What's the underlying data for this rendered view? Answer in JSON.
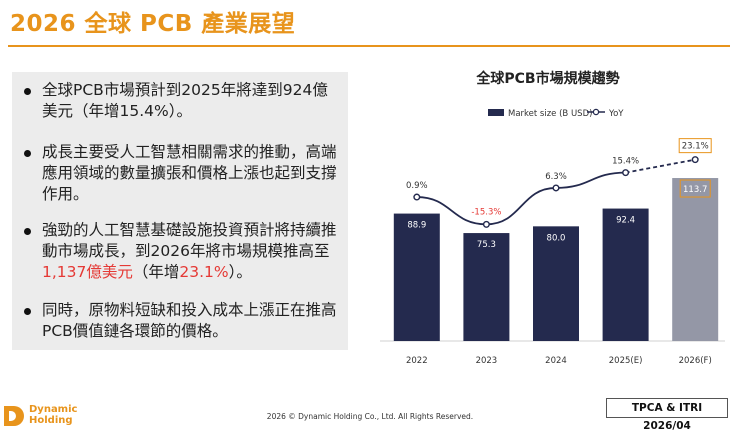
{
  "page": {
    "title": "2026 全球 PCB 產業展望",
    "footer": "2026 © Dynamic Holding Co., Ltd. All Rights Reserved.",
    "source": "TPCA & ITRI 2026/04",
    "logo": {
      "line1": "Dynamic",
      "line2": "Holding"
    }
  },
  "bullets": [
    {
      "segments": [
        {
          "text": "全球PCB市場預計到2025年將達到924億美元（年增15.4%）。",
          "color": "normal"
        }
      ]
    },
    {
      "segments": [
        {
          "text": "成長主要受人工智慧相關需求的推動，高端應用領域的數量擴張和價格上漲也起到支撐作用。",
          "color": "normal"
        }
      ]
    },
    {
      "segments": [
        {
          "text": "強勁的人工智慧基礎設施投資預計將持續推動市場成長，到2026年將市場規模推高至",
          "color": "normal"
        },
        {
          "text": "1,137億美元",
          "color": "red"
        },
        {
          "text": "（年增",
          "color": "normal"
        },
        {
          "text": "23.1%",
          "color": "red"
        },
        {
          "text": "）。",
          "color": "normal"
        }
      ]
    },
    {
      "segments": [
        {
          "text": "同時，原物料短缺和投入成本上漲正在推高PCB價值鏈各環節的價格。",
          "color": "normal"
        }
      ]
    }
  ],
  "chart_data": {
    "type": "bar",
    "title": "全球PCB市場規模趨勢",
    "categories": [
      "2022",
      "2023",
      "2024",
      "2025(E)",
      "2026(F)"
    ],
    "series": [
      {
        "name": "Market size (B USD)",
        "type": "bar",
        "values": [
          88.9,
          75.3,
          80.0,
          92.4,
          113.7
        ],
        "labels": [
          "88.9",
          "75.3",
          "80.0",
          "92.4",
          "113.7"
        ]
      },
      {
        "name": "YoY",
        "type": "line",
        "values": [
          0.9,
          -15.3,
          6.3,
          15.4,
          23.1
        ],
        "labels": [
          "0.9%",
          "-15.3%",
          "6.3%",
          "15.4%",
          "23.1%"
        ]
      }
    ],
    "bar_ylim": [
      0,
      150
    ],
    "line_ylim": [
      -40,
      30
    ],
    "colors": {
      "bar": "#242a4e",
      "bar_forecast": "#9497a6",
      "line": "#242a4e",
      "negative": "#e53935",
      "highlight_box": "#e8941c"
    },
    "forecast_index": 4,
    "legend_position": "top"
  }
}
